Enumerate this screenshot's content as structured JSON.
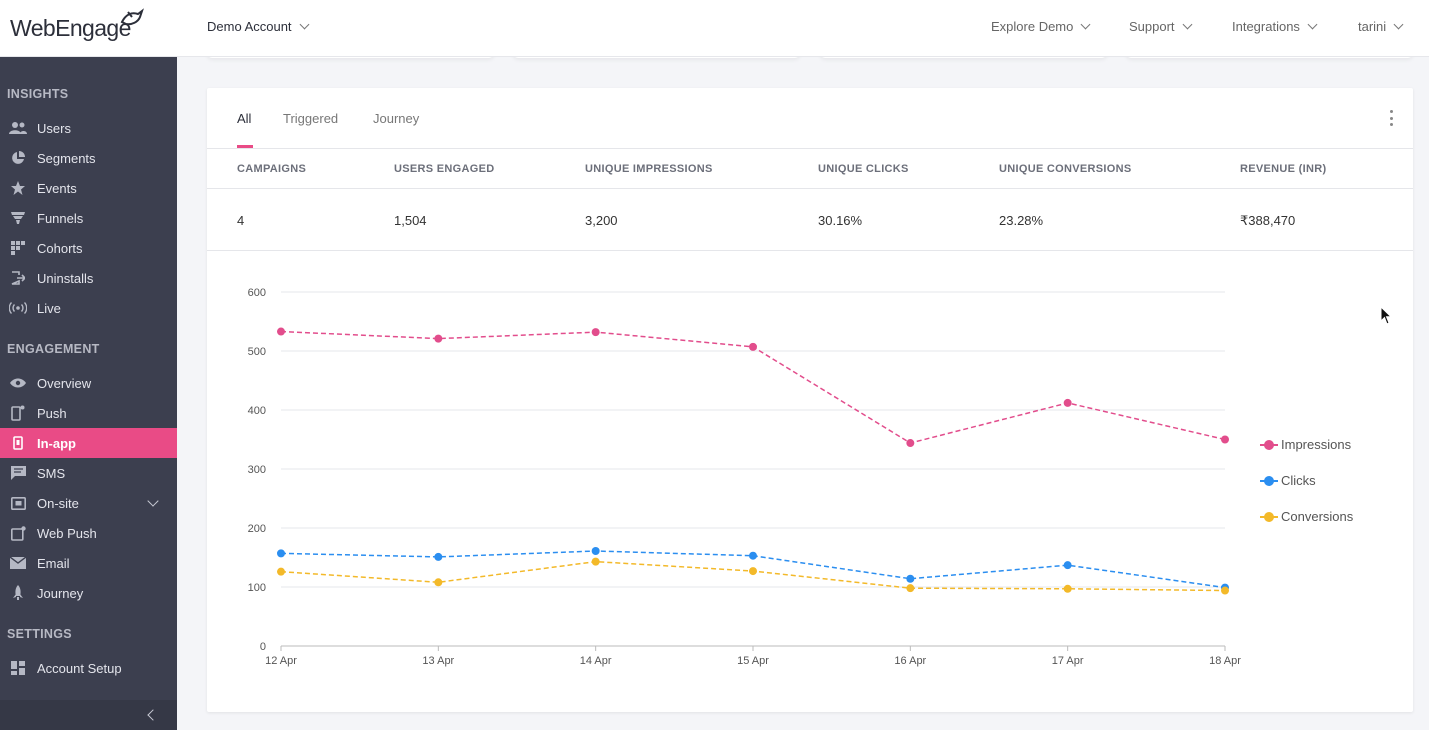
{
  "header": {
    "logo_text": "WebEngage",
    "account_menu": "Demo Account",
    "right_menu": [
      "Explore Demo",
      "Support",
      "Integrations",
      "tarini"
    ]
  },
  "sidebar": {
    "sections": [
      {
        "title": "INSIGHTS",
        "items": [
          {
            "label": "Users",
            "icon": "users-icon"
          },
          {
            "label": "Segments",
            "icon": "pie-icon"
          },
          {
            "label": "Events",
            "icon": "star-icon"
          },
          {
            "label": "Funnels",
            "icon": "funnel-icon"
          },
          {
            "label": "Cohorts",
            "icon": "grid-icon"
          },
          {
            "label": "Uninstalls",
            "icon": "exit-icon"
          },
          {
            "label": "Live",
            "icon": "broadcast-icon"
          }
        ]
      },
      {
        "title": "ENGAGEMENT",
        "items": [
          {
            "label": "Overview",
            "icon": "eye-icon"
          },
          {
            "label": "Push",
            "icon": "phone-icon"
          },
          {
            "label": "In-app",
            "icon": "inapp-icon",
            "active": true
          },
          {
            "label": "SMS",
            "icon": "sms-icon"
          },
          {
            "label": "On-site",
            "icon": "onsite-icon"
          },
          {
            "label": "Web Push",
            "icon": "webpush-icon"
          },
          {
            "label": "Email",
            "icon": "mail-icon"
          },
          {
            "label": "Journey",
            "icon": "rocket-icon"
          }
        ]
      },
      {
        "title": "SETTINGS",
        "items": [
          {
            "label": "Account Setup",
            "icon": "dashboard-icon"
          }
        ]
      }
    ]
  },
  "main": {
    "tabs": [
      "All",
      "Triggered",
      "Journey"
    ],
    "stats": {
      "headers": [
        "CAMPAIGNS",
        "USERS ENGAGED",
        "UNIQUE IMPRESSIONS",
        "UNIQUE CLICKS",
        "UNIQUE CONVERSIONS",
        "REVENUE (INR)"
      ],
      "values": [
        "4",
        "1,504",
        "3,200",
        "30.16%",
        "23.28%",
        "₹388,470"
      ]
    }
  },
  "colors": {
    "accent": "#e94b86",
    "impressions": "#e24d8c",
    "clicks": "#2b8ef0",
    "conversions": "#f3b929",
    "sidebar_bg": "#3c3f4f"
  },
  "chart_data": {
    "type": "line",
    "x": [
      "12 Apr",
      "13 Apr",
      "14 Apr",
      "15 Apr",
      "16 Apr",
      "17 Apr",
      "18 Apr"
    ],
    "ylim": [
      0,
      600
    ],
    "yticks": [
      0,
      100,
      200,
      300,
      400,
      500,
      600
    ],
    "grid": true,
    "legend_position": "right",
    "line_style": "dashed",
    "series": [
      {
        "name": "Impressions",
        "color": "#e24d8c",
        "values": [
          533,
          521,
          532,
          507,
          344,
          412,
          350
        ]
      },
      {
        "name": "Clicks",
        "color": "#2b8ef0",
        "values": [
          157,
          151,
          161,
          153,
          114,
          137,
          99
        ]
      },
      {
        "name": "Conversions",
        "color": "#f3b929",
        "values": [
          126,
          108,
          143,
          127,
          98,
          97,
          94
        ]
      }
    ]
  }
}
